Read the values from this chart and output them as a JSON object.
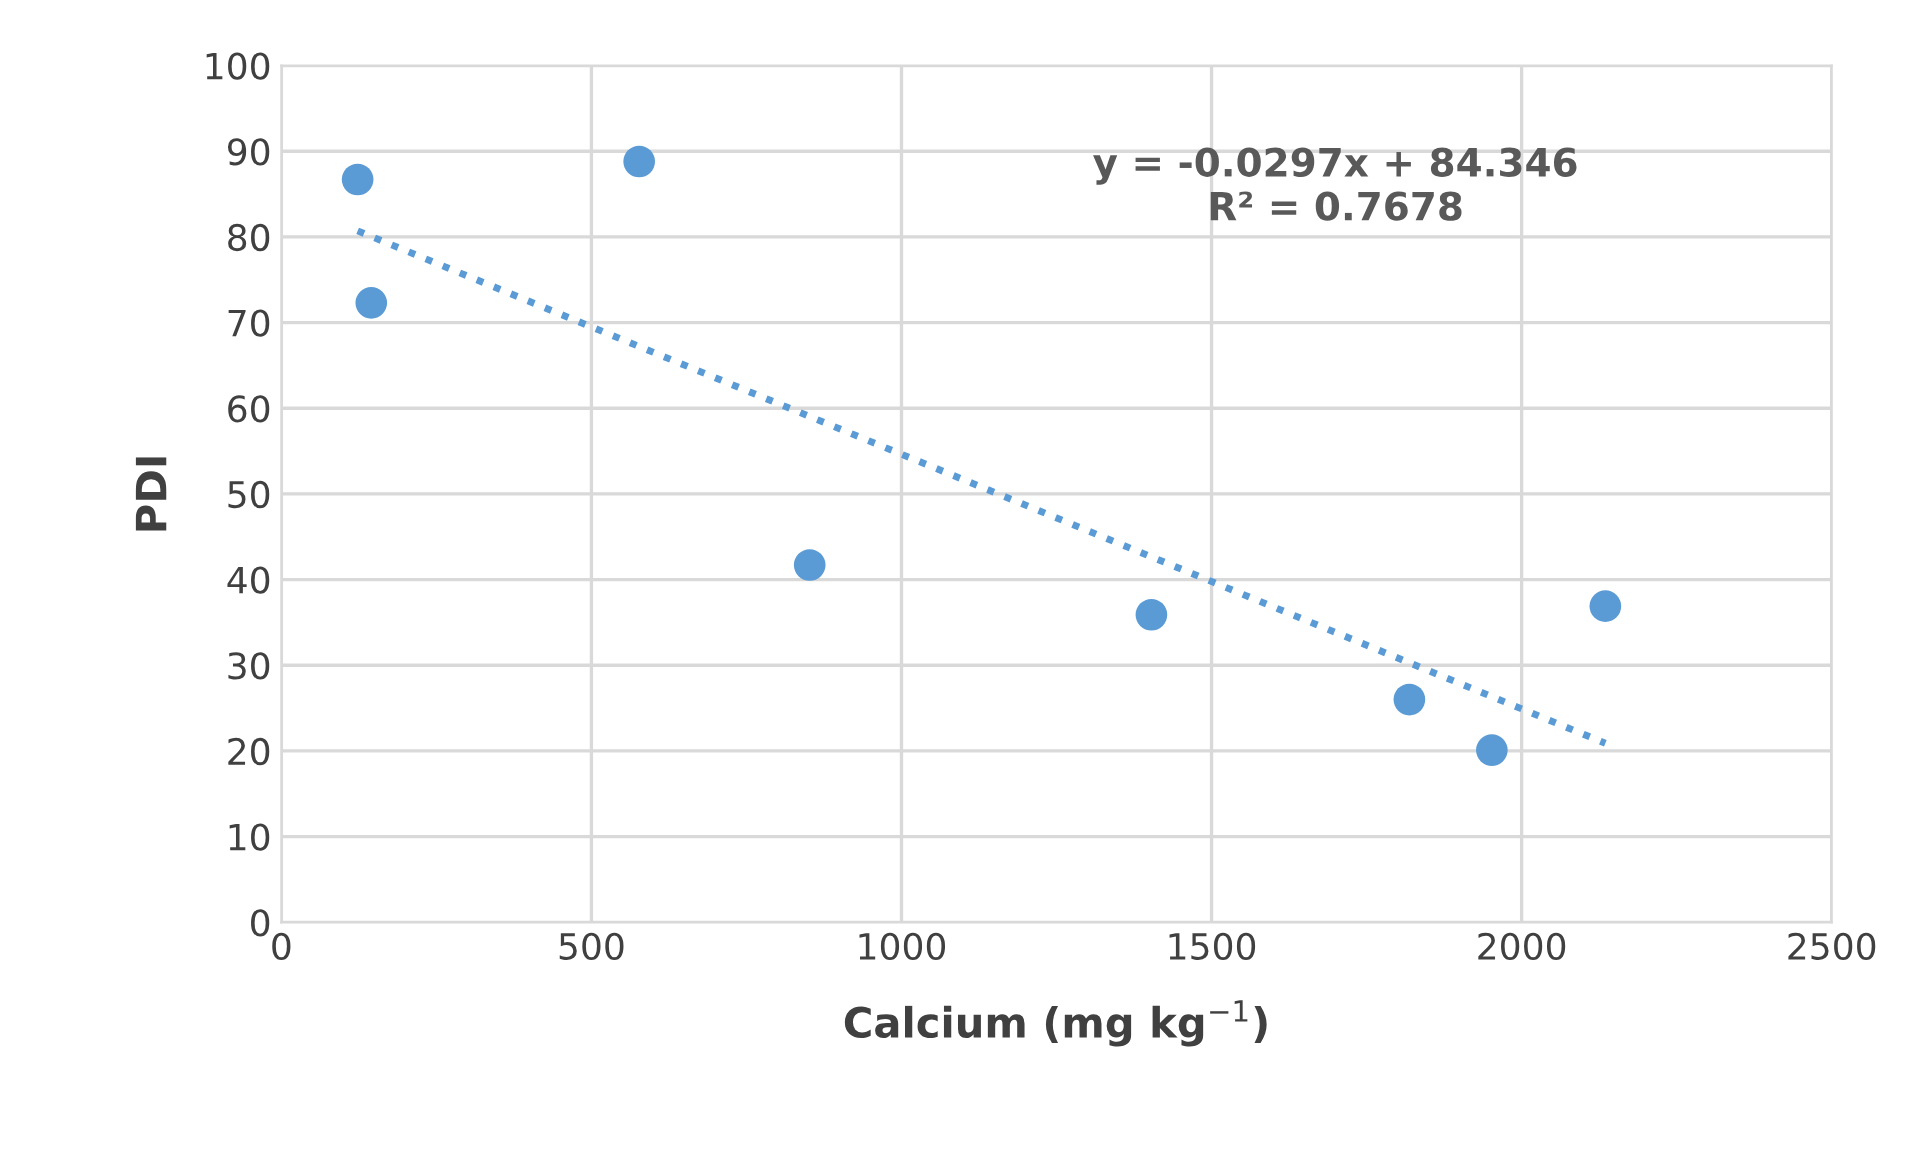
{
  "chart_data": {
    "type": "scatter",
    "xlabel": "Calcium (mg kg$^{−1}$)",
    "ylabel": "PDI",
    "series": [
      {
        "color": "#5b9bd5",
        "x": [
          123,
          145,
          577,
          852,
          1403,
          1819,
          1952,
          2135
        ],
        "values": [
          86.7,
          72.3,
          88.8,
          41.7,
          35.9,
          26.0,
          20.1,
          36.9
        ],
        "marker": "circle"
      },
      {
        "type": "line",
        "color": "#5b9bd5",
        "x": [
          123,
          2135
        ],
        "values": [
          80.7,
          20.9
        ],
        "line_style": "dotted",
        "marker": "none"
      }
    ],
    "annotations": [
      "y = -0.0297x + 84.346\nR² = 0.7678"
    ],
    "xlim": [
      0,
      2500
    ],
    "xticks": [
      0,
      500,
      1000,
      1500,
      2000,
      2500
    ],
    "ylim": [
      0,
      100
    ],
    "yticks": [
      0,
      10,
      20,
      30,
      40,
      50,
      60,
      70,
      80,
      90,
      100
    ],
    "grid": true
  }
}
